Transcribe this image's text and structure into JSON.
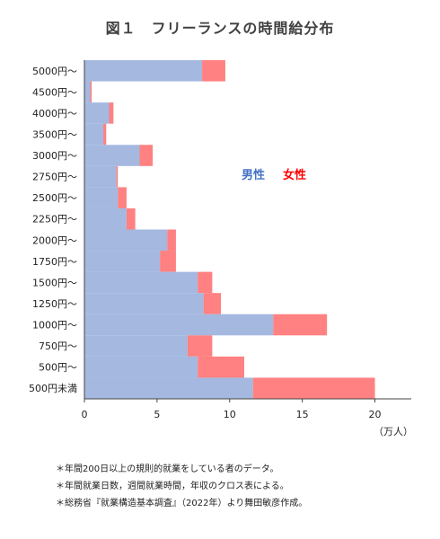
{
  "title": "図１　フリーランスの時間給分布",
  "legend": {
    "male": "男性",
    "female": "女性",
    "male_color": "#4472c4",
    "female_color": "#ff0000"
  },
  "unit_label": "（万人）",
  "notes": [
    "＊年間200日以上の規則的就業をしている者のデータ。",
    "＊年間就業日数，週間就業時間，年収のクロス表による。",
    "＊総務省『就業構造基本調査』（2022年）より舞田敏彦作成。"
  ],
  "chart_data": {
    "type": "bar",
    "orientation": "horizontal",
    "stacked": true,
    "title": "図１　フリーランスの時間給分布",
    "xlabel": "（万人）",
    "ylabel": "",
    "xlim": [
      0,
      22.5
    ],
    "xticks": [
      "0",
      "5",
      "10",
      "15",
      "20"
    ],
    "grid": false,
    "legend_position": "inside-right",
    "categories": [
      "5000円～",
      "4500円～",
      "4000円～",
      "3500円～",
      "3000円～",
      "2750円～",
      "2500円～",
      "2250円～",
      "2000円～",
      "1750円～",
      "1500円～",
      "1250円～",
      "1000円～",
      "750円～",
      "500円～",
      "500円未満"
    ],
    "series": [
      {
        "name": "男性",
        "color": "#a4b8e0",
        "values": [
          8.1,
          0.4,
          1.7,
          1.3,
          3.8,
          2.2,
          2.3,
          2.9,
          5.7,
          5.2,
          7.8,
          8.2,
          13.0,
          7.1,
          7.8,
          11.6
        ]
      },
      {
        "name": "女性",
        "color": "#ff8181",
        "values": [
          1.6,
          0.1,
          0.3,
          0.2,
          0.9,
          0.1,
          0.6,
          0.6,
          0.6,
          1.1,
          1.0,
          1.2,
          3.7,
          1.7,
          3.2,
          8.4
        ]
      }
    ]
  }
}
